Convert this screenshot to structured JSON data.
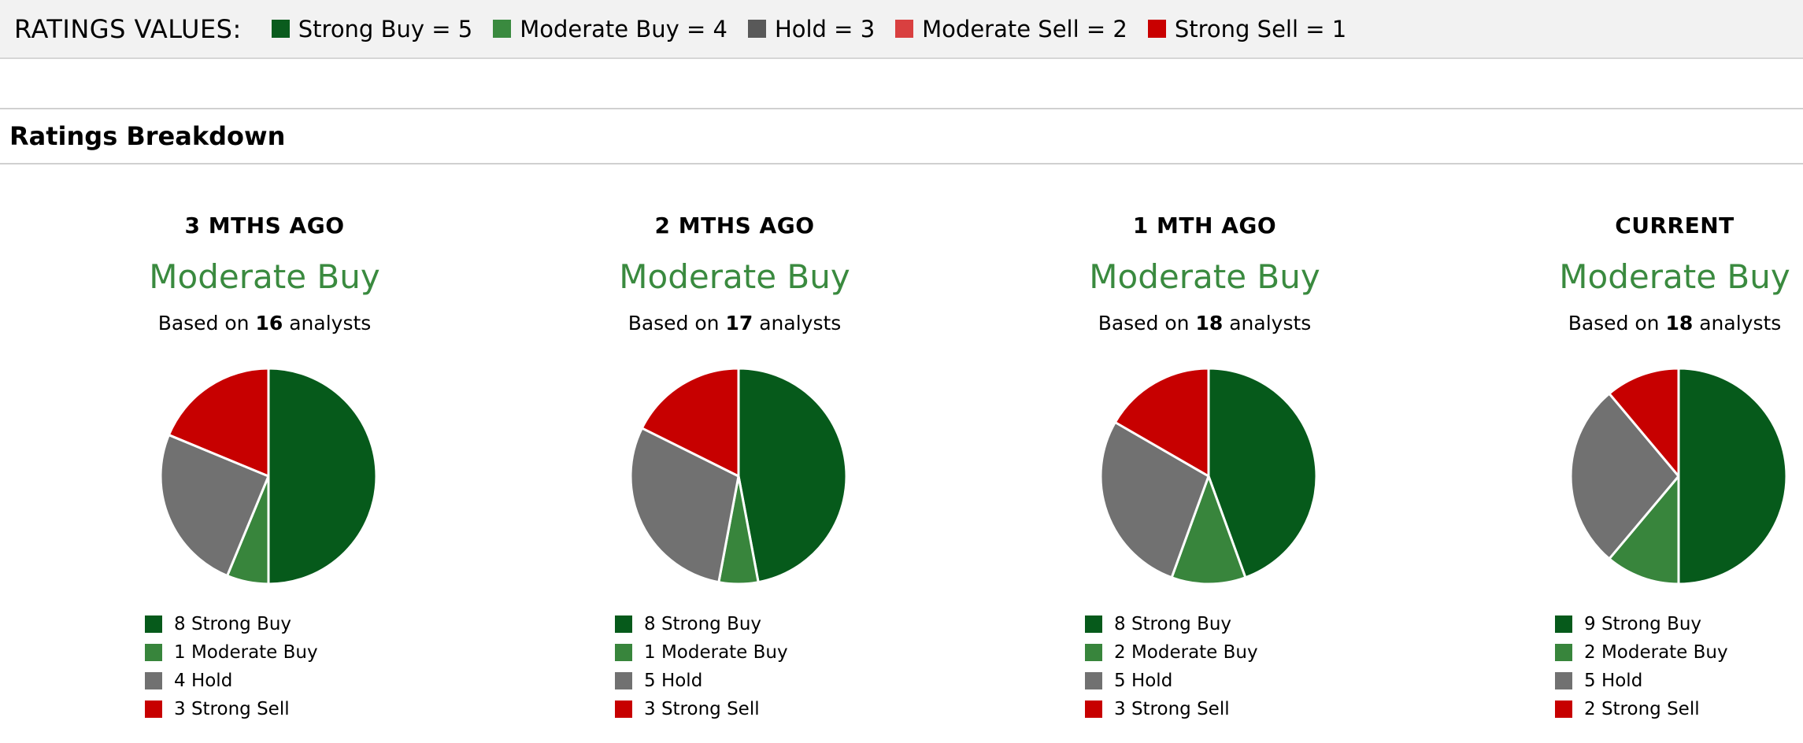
{
  "header": {
    "title": "RATINGS VALUES:",
    "legend": [
      {
        "label": "Strong Buy = 5",
        "color": "#0a5c1e"
      },
      {
        "label": "Moderate Buy = 4",
        "color": "#3a8a3f"
      },
      {
        "label": "Hold = 3",
        "color": "#595959"
      },
      {
        "label": "Moderate Sell = 2",
        "color": "#d94040"
      },
      {
        "label": "Strong Sell = 1",
        "color": "#c90000"
      }
    ]
  },
  "section": {
    "title": "Ratings Breakdown"
  },
  "chart_data": [
    {
      "type": "pie",
      "title": "3 MTHS AGO",
      "consensus": "Moderate Buy",
      "based_prefix": "Based on ",
      "analysts": "16",
      "based_suffix": " analysts",
      "slices": [
        {
          "count": 8,
          "label": "8 Strong Buy",
          "color": "#065a1b"
        },
        {
          "count": 1,
          "label": "1 Moderate Buy",
          "color": "#38853c"
        },
        {
          "count": 4,
          "label": "4 Hold",
          "color": "#717171"
        },
        {
          "count": 3,
          "label": "3 Strong Sell",
          "color": "#c70000"
        }
      ]
    },
    {
      "type": "pie",
      "title": "2 MTHS AGO",
      "consensus": "Moderate Buy",
      "based_prefix": "Based on ",
      "analysts": "17",
      "based_suffix": " analysts",
      "slices": [
        {
          "count": 8,
          "label": "8 Strong Buy",
          "color": "#065a1b"
        },
        {
          "count": 1,
          "label": "1 Moderate Buy",
          "color": "#38853c"
        },
        {
          "count": 5,
          "label": "5 Hold",
          "color": "#717171"
        },
        {
          "count": 3,
          "label": "3 Strong Sell",
          "color": "#c70000"
        }
      ]
    },
    {
      "type": "pie",
      "title": "1 MTH AGO",
      "consensus": "Moderate Buy",
      "based_prefix": "Based on ",
      "analysts": "18",
      "based_suffix": " analysts",
      "slices": [
        {
          "count": 8,
          "label": "8 Strong Buy",
          "color": "#065a1b"
        },
        {
          "count": 2,
          "label": "2 Moderate Buy",
          "color": "#38853c"
        },
        {
          "count": 5,
          "label": "5 Hold",
          "color": "#717171"
        },
        {
          "count": 3,
          "label": "3 Strong Sell",
          "color": "#c70000"
        }
      ]
    },
    {
      "type": "pie",
      "title": "CURRENT",
      "consensus": "Moderate Buy",
      "based_prefix": "Based on ",
      "analysts": "18",
      "based_suffix": " analysts",
      "slices": [
        {
          "count": 9,
          "label": "9 Strong Buy",
          "color": "#065a1b"
        },
        {
          "count": 2,
          "label": "2 Moderate Buy",
          "color": "#38853c"
        },
        {
          "count": 5,
          "label": "5 Hold",
          "color": "#717171"
        },
        {
          "count": 2,
          "label": "2 Strong Sell",
          "color": "#c70000"
        }
      ]
    }
  ]
}
